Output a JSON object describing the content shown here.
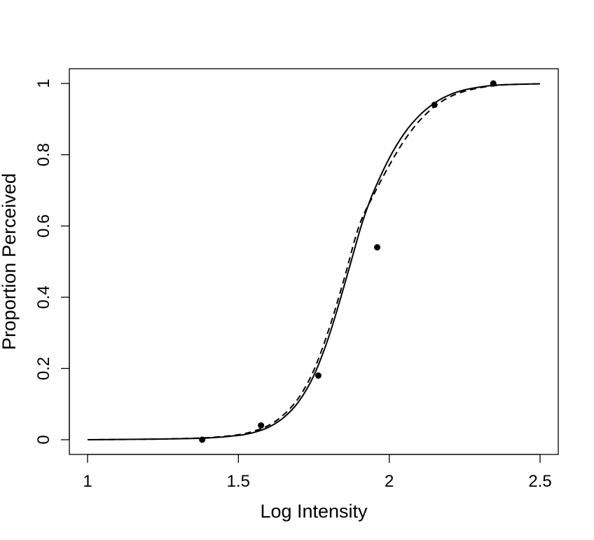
{
  "chart_data": {
    "type": "scatter",
    "title": "",
    "xlabel": "Log Intensity",
    "ylabel": "Proportion Perceived",
    "xlim": [
      1,
      2.5
    ],
    "ylim": [
      0,
      1
    ],
    "x_ticks": [
      1,
      1.5,
      2,
      2.5
    ],
    "x_tick_labels": [
      "1",
      "1.5",
      "2",
      "2.5"
    ],
    "y_ticks": [
      0,
      0.2,
      0.4,
      0.6,
      0.8,
      1
    ],
    "y_tick_labels": [
      "0",
      "0.2",
      "0.4",
      "0.6",
      "0.8",
      "1"
    ],
    "grid": false,
    "legend": null,
    "series": [
      {
        "style": "points",
        "color": "#000000",
        "x": [
          1.38,
          1.575,
          1.765,
          1.96,
          2.15,
          2.345
        ],
        "y": [
          0.0,
          0.04,
          0.18,
          0.54,
          0.94,
          1.0
        ]
      },
      {
        "style": "solid-line",
        "color": "#000000",
        "x": [
          1.0,
          1.25,
          1.4,
          1.5,
          1.55,
          1.6,
          1.65,
          1.7,
          1.75,
          1.8,
          1.85,
          1.9,
          1.925,
          1.95,
          2.0,
          2.05,
          2.1,
          2.15,
          2.2,
          2.25,
          2.3,
          2.35,
          2.4,
          2.5
        ],
        "y": [
          0.0,
          0.002,
          0.005,
          0.012,
          0.02,
          0.035,
          0.062,
          0.107,
          0.18,
          0.29,
          0.43,
          0.58,
          0.645,
          0.7,
          0.79,
          0.86,
          0.91,
          0.945,
          0.968,
          0.982,
          0.99,
          0.995,
          0.997,
          0.999
        ]
      },
      {
        "style": "dashed-line",
        "color": "#000000",
        "x": [
          1.0,
          1.25,
          1.4,
          1.5,
          1.55,
          1.6,
          1.65,
          1.7,
          1.75,
          1.8,
          1.85,
          1.9,
          1.95,
          2.0,
          2.05,
          2.1,
          2.15,
          2.2,
          2.25,
          2.3,
          2.35,
          2.4,
          2.5
        ],
        "y": [
          0.0,
          0.002,
          0.006,
          0.014,
          0.024,
          0.04,
          0.07,
          0.118,
          0.195,
          0.31,
          0.45,
          0.6,
          0.69,
          0.77,
          0.84,
          0.895,
          0.935,
          0.962,
          0.978,
          0.988,
          0.994,
          0.997,
          0.999
        ]
      }
    ]
  }
}
